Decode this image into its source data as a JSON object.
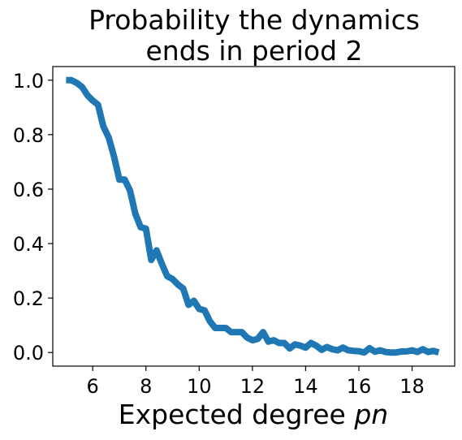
{
  "chart_data": {
    "type": "line",
    "title_lines": [
      "Probability the dynamics",
      "ends in period 2"
    ],
    "xlabel_prefix": "Expected degree ",
    "xlabel_var": "pn",
    "ylabel": "",
    "xlim": [
      4.5,
      19.6
    ],
    "ylim": [
      -0.05,
      1.05
    ],
    "x_ticks": [
      6,
      8,
      10,
      12,
      14,
      16,
      18
    ],
    "y_ticks": [
      0.0,
      0.2,
      0.4,
      0.6,
      0.8,
      1.0
    ],
    "x_tick_labels": [
      "6",
      "8",
      "10",
      "12",
      "14",
      "16",
      "18"
    ],
    "y_tick_labels": [
      "0.0",
      "0.2",
      "0.4",
      "0.6",
      "0.8",
      "1.0"
    ],
    "grid": false,
    "series": [
      {
        "color": "#1f77b4",
        "x": [
          5.0,
          5.2,
          5.4,
          5.6,
          5.8,
          6.0,
          6.2,
          6.4,
          6.6,
          6.8,
          7.0,
          7.2,
          7.4,
          7.6,
          7.8,
          8.0,
          8.2,
          8.4,
          8.6,
          8.8,
          9.0,
          9.2,
          9.4,
          9.6,
          9.8,
          10.0,
          10.2,
          10.4,
          10.6,
          10.8,
          11.0,
          11.2,
          11.4,
          11.6,
          11.8,
          12.0,
          12.2,
          12.4,
          12.6,
          12.8,
          13.0,
          13.2,
          13.4,
          13.6,
          13.8,
          14.0,
          14.2,
          14.4,
          14.6,
          14.8,
          15.0,
          15.2,
          15.4,
          15.6,
          15.8,
          16.0,
          16.2,
          16.4,
          16.6,
          16.8,
          17.0,
          17.2,
          17.4,
          17.6,
          17.8,
          18.0,
          18.2,
          18.4,
          18.6,
          18.8,
          19.0
        ],
        "y": [
          1.0,
          1.0,
          0.99,
          0.975,
          0.945,
          0.925,
          0.91,
          0.83,
          0.79,
          0.72,
          0.635,
          0.635,
          0.595,
          0.51,
          0.46,
          0.455,
          0.34,
          0.375,
          0.325,
          0.28,
          0.27,
          0.25,
          0.235,
          0.175,
          0.19,
          0.16,
          0.155,
          0.115,
          0.09,
          0.09,
          0.09,
          0.075,
          0.075,
          0.075,
          0.055,
          0.045,
          0.05,
          0.075,
          0.04,
          0.045,
          0.035,
          0.035,
          0.015,
          0.03,
          0.025,
          0.018,
          0.035,
          0.025,
          0.01,
          0.02,
          0.012,
          0.008,
          0.018,
          0.008,
          0.006,
          0.005,
          0.0,
          0.016,
          0.003,
          0.008,
          0.002,
          0.0,
          0.0,
          0.004,
          0.004,
          0.008,
          0.002,
          0.012,
          0.002,
          0.006,
          0.0
        ]
      }
    ]
  }
}
